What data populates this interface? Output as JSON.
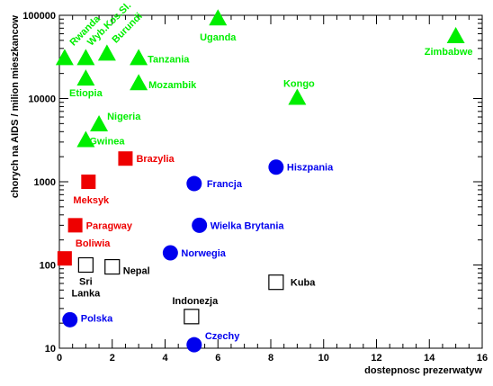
{
  "chart_data": {
    "type": "scatter",
    "title": "",
    "xlabel": "dostepnosc prezerwatyw",
    "ylabel": "chorych na AIDS / milion mieszkancow",
    "xlim": [
      0,
      16
    ],
    "ylim": [
      10,
      100000
    ],
    "ylog": true,
    "grid": false,
    "x_ticks": [
      0,
      2,
      4,
      6,
      8,
      10,
      12,
      14,
      16
    ],
    "y_ticks": [
      10,
      100,
      1000,
      10000,
      100000
    ],
    "y_tick_labels": [
      "10",
      "100",
      "1000",
      "10000",
      "100000"
    ],
    "series": [
      {
        "marker": "triangle",
        "color": "#00ee00",
        "points": [
          {
            "label": "Rwanda",
            "x": 0.2,
            "y": 30000
          },
          {
            "label": "Wyb.Kos.Sl.",
            "x": 1.0,
            "y": 30000
          },
          {
            "label": "Burundi",
            "x": 1.8,
            "y": 34000
          },
          {
            "label": "Tanzania",
            "x": 3.0,
            "y": 30000
          },
          {
            "label": "Uganda",
            "x": 6.0,
            "y": 90000
          },
          {
            "label": "Zimbabwe",
            "x": 15.0,
            "y": 55000
          },
          {
            "label": "Etiopia",
            "x": 1.0,
            "y": 17000
          },
          {
            "label": "Mozambik",
            "x": 3.0,
            "y": 15000
          },
          {
            "label": "Kongo",
            "x": 9.0,
            "y": 10000
          },
          {
            "label": "Nigeria",
            "x": 1.5,
            "y": 4800
          },
          {
            "label": "Gwinea",
            "x": 1.0,
            "y": 3100
          }
        ]
      },
      {
        "marker": "square",
        "color": "#ee0000",
        "points": [
          {
            "label": "Brazylia",
            "x": 2.5,
            "y": 1900
          },
          {
            "label": "Meksyk",
            "x": 1.1,
            "y": 1000
          },
          {
            "label": "Paragway",
            "x": 0.6,
            "y": 300
          },
          {
            "label": "Boliwia",
            "x": 0.2,
            "y": 120
          }
        ]
      },
      {
        "marker": "circle",
        "color": "#0000ee",
        "points": [
          {
            "label": "Hiszpania",
            "x": 8.2,
            "y": 1500
          },
          {
            "label": "Francja",
            "x": 5.1,
            "y": 950
          },
          {
            "label": "Wielka Brytania",
            "x": 5.3,
            "y": 300
          },
          {
            "label": "Norwegia",
            "x": 4.2,
            "y": 140
          },
          {
            "label": "Polska",
            "x": 0.4,
            "y": 22
          },
          {
            "label": "Czechy",
            "x": 5.1,
            "y": 11
          }
        ]
      },
      {
        "marker": "open-square",
        "color": "#000000",
        "points": [
          {
            "label": "Sri Lanka",
            "x": 1.0,
            "y": 100
          },
          {
            "label": "Nepal",
            "x": 2.0,
            "y": 95
          },
          {
            "label": "Kuba",
            "x": 8.2,
            "y": 62
          },
          {
            "label": "Indonezja",
            "x": 5.0,
            "y": 24
          }
        ]
      }
    ]
  }
}
